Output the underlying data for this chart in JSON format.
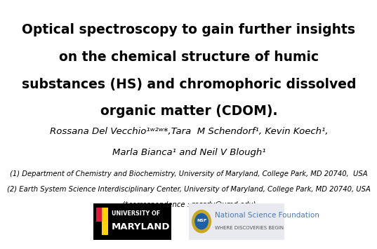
{
  "title_line1": "Optical spectroscopy to gain further insights",
  "title_line2": "on the chemical structure of humic",
  "title_line3": "substances (HS) and chromophoric dissolved",
  "title_line4": "organic matter (CDOM).",
  "author_line1": "Rossana Del Vecchio¹ʷ²ʷ*,Tara  M Schendorf¹, Kevin Koech¹,",
  "author_line2": "Marla Bianca¹ and Neil V Blough¹",
  "affil_line1": "(1) Department of Chemistry and Biochemistry, University of Maryland, College Park, MD 20740,  USA",
  "affil_line2": "(2) Earth System Science Interdisciplinary Center, University of Maryland, College Park, MD 20740, USA",
  "affil_line3": "(*correspondence : rossdv@umd.edu)",
  "bg_color": "#ffffff",
  "title_color": "#000000",
  "author_color": "#000000",
  "affil_color": "#000000",
  "title_fontsize": 13.5,
  "author_fontsize": 9.5,
  "affil_fontsize": 7.2,
  "nsf_text_line1": "National Science Foundation",
  "nsf_text_line2": "WHERE DISCOVERIES BEGIN",
  "nsf_text_color": "#4a7ab5",
  "nsf_subtext_color": "#555555"
}
